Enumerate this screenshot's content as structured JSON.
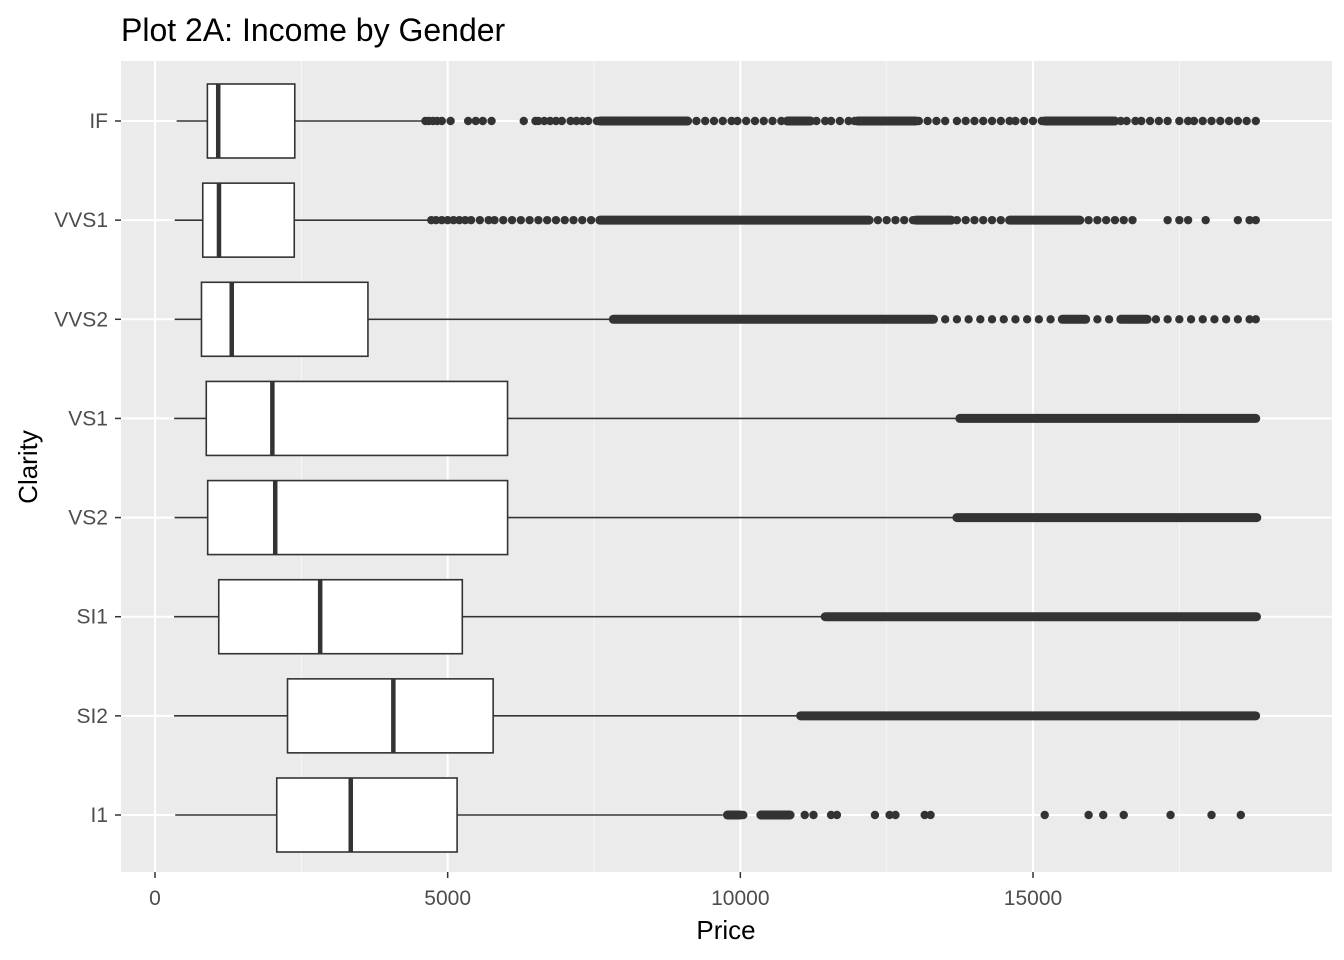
{
  "chart_data": {
    "type": "boxplot",
    "orientation": "horizontal",
    "title": "Plot 2A: Income by Gender",
    "xlabel": "Price",
    "ylabel": "Clarity",
    "xlim": [
      -600,
      19400
    ],
    "x_ticks": [
      0,
      5000,
      10000,
      15000
    ],
    "x_minor_ticks": [
      2500,
      7500,
      12500,
      17500
    ],
    "grid": true,
    "colors": {
      "panel_background": "#ebebeb",
      "grid_major": "#ffffff",
      "grid_minor": "#f7f7f7",
      "box_fill": "#ffffff",
      "box_line": "#333333",
      "outlier": "#333333",
      "tick_text": "#4d4d4d",
      "tick_mark": "#333333"
    },
    "categories": [
      "IF",
      "VVS1",
      "VVS2",
      "VS1",
      "VS2",
      "SI1",
      "SI2",
      "I1"
    ],
    "series": [
      {
        "category": "IF",
        "whisker_low": 369,
        "q1": 895,
        "median": 1080,
        "q3": 2388,
        "whisker_high": 4600,
        "outliers": [
          4620,
          4680,
          4750,
          4820,
          4900,
          5050,
          5350,
          5480,
          5600,
          5750,
          6300,
          6500,
          6550,
          6650,
          6750,
          6850,
          6950,
          7100,
          7200,
          7300,
          7400,
          7550,
          7650,
          7750,
          7850,
          7950,
          8100,
          8250,
          8400,
          8550,
          8700,
          8800,
          8950,
          9100,
          9250,
          9400,
          9550,
          9700,
          9850,
          9950,
          10100,
          10250,
          10400,
          10550,
          10700,
          10850,
          11000,
          11150,
          11300,
          11450,
          11550,
          11700,
          11850,
          11950,
          12100,
          12250,
          12400,
          12550,
          12650,
          12800,
          12950,
          13050,
          13200,
          13350,
          13500,
          13700,
          13850,
          14000,
          14150,
          14300,
          14450,
          14600,
          14700,
          14850,
          15000,
          15150,
          15300,
          15450,
          15600,
          15750,
          15900,
          16050,
          16150,
          16300,
          16500,
          16600,
          16750,
          16850,
          17000,
          17150,
          17300,
          17500,
          17650,
          17750,
          17900,
          18050,
          18200,
          18350,
          18500,
          18650,
          18806
        ],
        "outlier_bands": [
          [
            7600,
            9100
          ],
          [
            10800,
            11200
          ],
          [
            12000,
            13000
          ],
          [
            15200,
            16400
          ]
        ]
      },
      {
        "category": "VVS1",
        "whisker_low": 336,
        "q1": 816,
        "median": 1093,
        "q3": 2379,
        "whisker_high": 4700,
        "outliers": [
          4720,
          4800,
          4900,
          5000,
          5100,
          5200,
          5300,
          5400,
          5550,
          5700,
          5800,
          5950,
          6100,
          6250,
          6400,
          6550,
          6700,
          6850,
          7000,
          7150,
          7300,
          7450,
          7600,
          12200,
          12350,
          12500,
          12650,
          12800,
          12950,
          13100,
          13250,
          13400,
          13550,
          13700,
          13850,
          14000,
          14150,
          14300,
          14450,
          14600,
          14750,
          14900,
          15050,
          15200,
          15350,
          15500,
          15650,
          15800,
          15950,
          16100,
          16250,
          16400,
          16550,
          16700,
          17300,
          17500,
          17650,
          17950,
          18500,
          18700,
          18806
        ],
        "outlier_bands": [
          [
            7600,
            12200
          ],
          [
            13000,
            13600
          ],
          [
            14600,
            15800
          ]
        ]
      },
      {
        "category": "VVS2",
        "whisker_low": 336,
        "q1": 794,
        "median": 1311,
        "q3": 3638,
        "whisker_high": 7800,
        "outliers": [
          13300,
          13500,
          13700,
          13900,
          14100,
          14300,
          14500,
          14700,
          14900,
          15100,
          15300,
          15500,
          15700,
          15900,
          16100,
          16300,
          16500,
          16700,
          16900,
          17100,
          17300,
          17500,
          17700,
          17900,
          18100,
          18300,
          18500,
          18700,
          18806
        ],
        "outlier_bands": [
          [
            7830,
            13300
          ],
          [
            15500,
            15900
          ],
          [
            16500,
            16950
          ]
        ]
      },
      {
        "category": "VS1",
        "whisker_low": 327,
        "q1": 876,
        "median": 2005,
        "q3": 6023,
        "whisker_high": 13700,
        "outliers": [],
        "outlier_bands": [
          [
            13750,
            18806
          ]
        ]
      },
      {
        "category": "VS2",
        "whisker_low": 334,
        "q1": 900,
        "median": 2054,
        "q3": 6024,
        "whisker_high": 13650,
        "outliers": [],
        "outlier_bands": [
          [
            13700,
            18823
          ]
        ]
      },
      {
        "category": "SI1",
        "whisker_low": 326,
        "q1": 1089,
        "median": 2822,
        "q3": 5250,
        "whisker_high": 11400,
        "outliers": [],
        "outlier_bands": [
          [
            11450,
            18818
          ]
        ]
      },
      {
        "category": "SI2",
        "whisker_low": 326,
        "q1": 2264,
        "median": 4072,
        "q3": 5777,
        "whisker_high": 11000,
        "outliers": [],
        "outlier_bands": [
          [
            11030,
            18804
          ]
        ]
      },
      {
        "category": "I1",
        "whisker_low": 345,
        "q1": 2080,
        "median": 3344,
        "q3": 5161,
        "whisker_high": 9700,
        "outliers": [
          9800,
          9900,
          10050,
          10350,
          10450,
          10550,
          10650,
          10750,
          10850,
          11100,
          11250,
          11550,
          11650,
          12300,
          12550,
          12650,
          13150,
          13250,
          15200,
          15950,
          16200,
          16550,
          17350,
          18050,
          18550
        ],
        "outlier_bands": [
          [
            9780,
            10000
          ],
          [
            10350,
            10850
          ]
        ]
      }
    ]
  }
}
